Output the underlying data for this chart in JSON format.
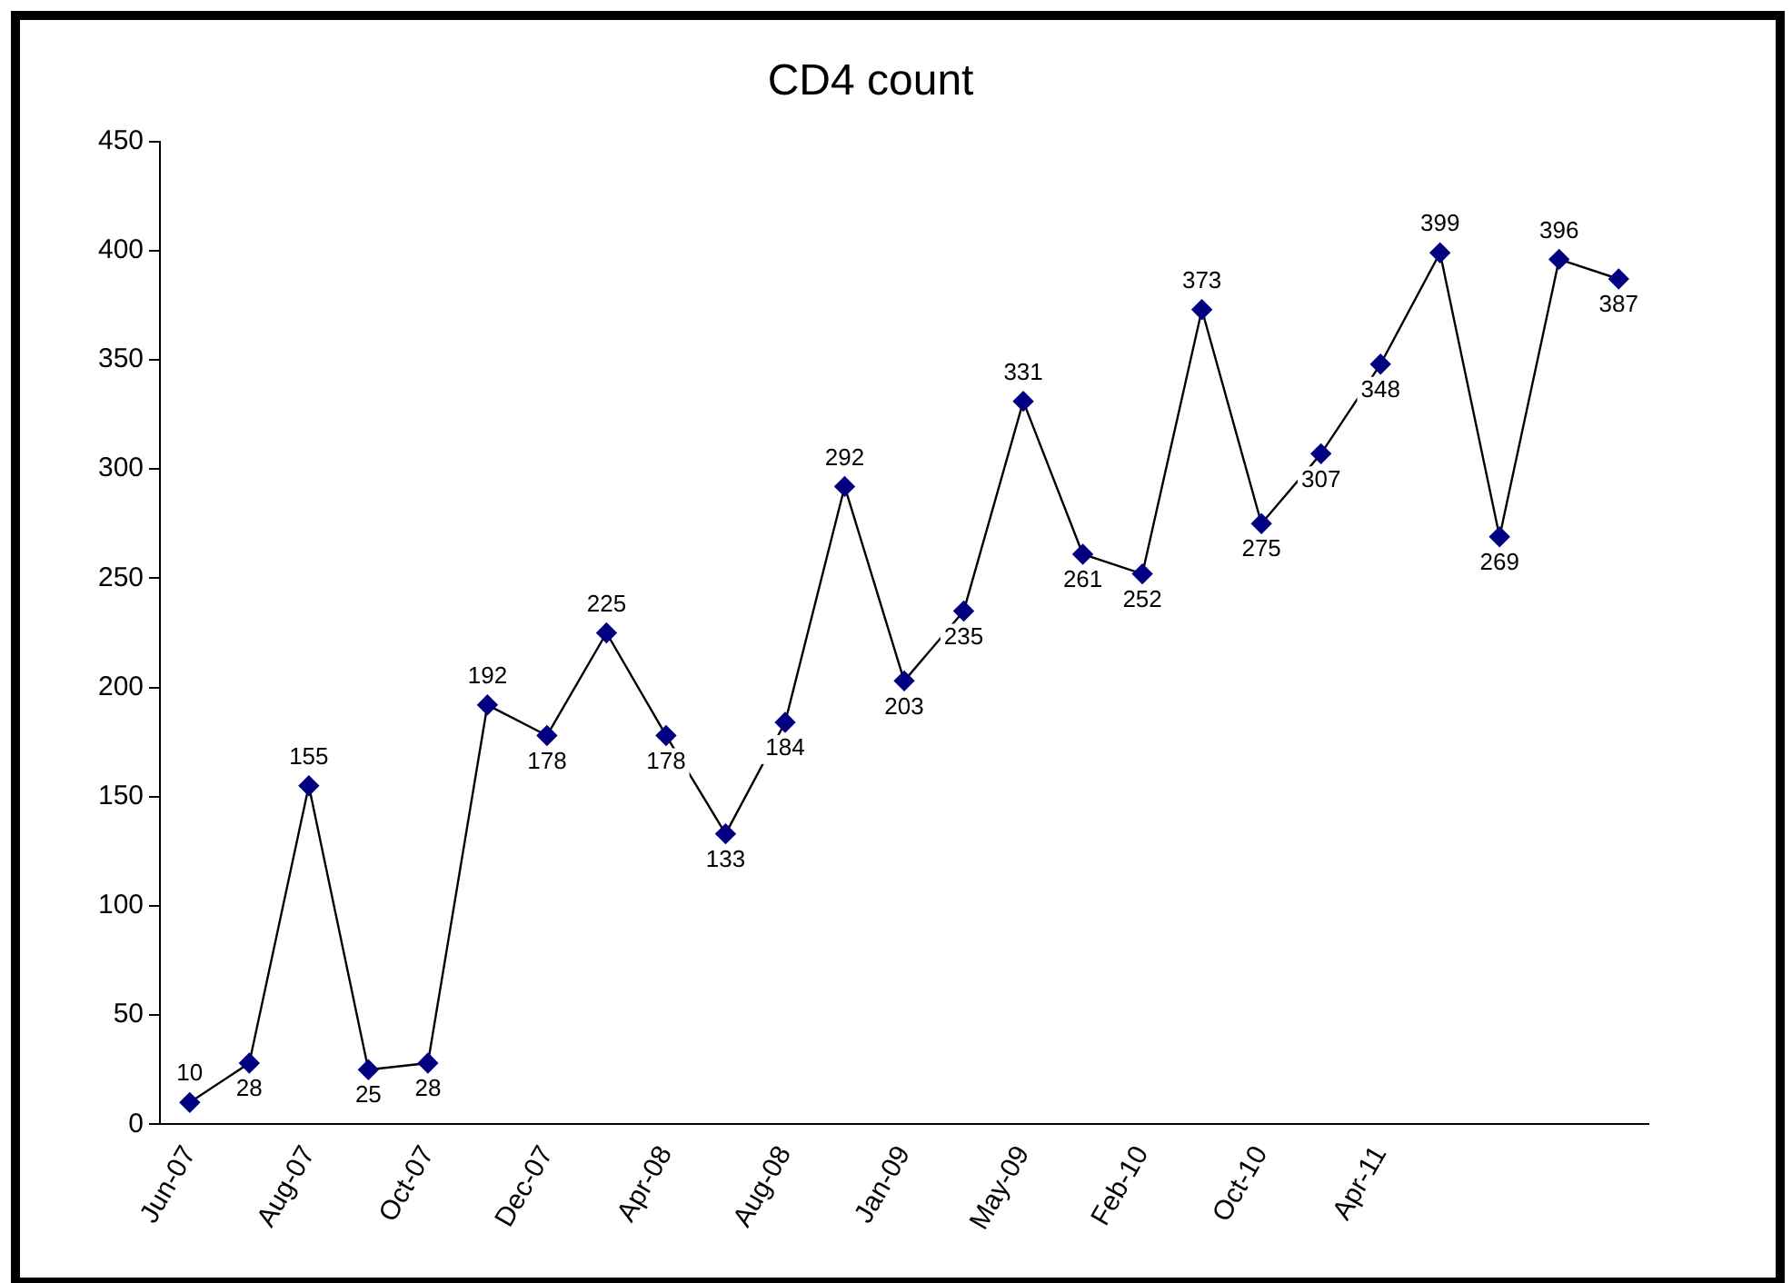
{
  "chart_data": {
    "type": "line",
    "title": "CD4 count",
    "categories": [
      "Jun-07",
      null,
      "Aug-07",
      null,
      "Oct-07",
      null,
      "Dec-07",
      null,
      "Apr-08",
      null,
      "Aug-08",
      null,
      "Jan-09",
      null,
      "May-09",
      null,
      "Feb-10",
      null,
      "Oct-10",
      null,
      "Apr-11",
      null,
      null,
      null,
      null
    ],
    "series": [
      {
        "color": "#000080",
        "values": [
          10,
          28,
          155,
          25,
          28,
          192,
          178,
          225,
          178,
          133,
          184,
          292,
          203,
          235,
          331,
          261,
          252,
          373,
          275,
          307,
          348,
          399,
          269,
          396,
          387
        ]
      }
    ],
    "ylim": [
      0,
      450
    ],
    "yticks": [
      0,
      50,
      100,
      150,
      200,
      250,
      300,
      350,
      400,
      450
    ],
    "grid": false,
    "legend": false,
    "marker": "diamond",
    "data_labels": true
  }
}
